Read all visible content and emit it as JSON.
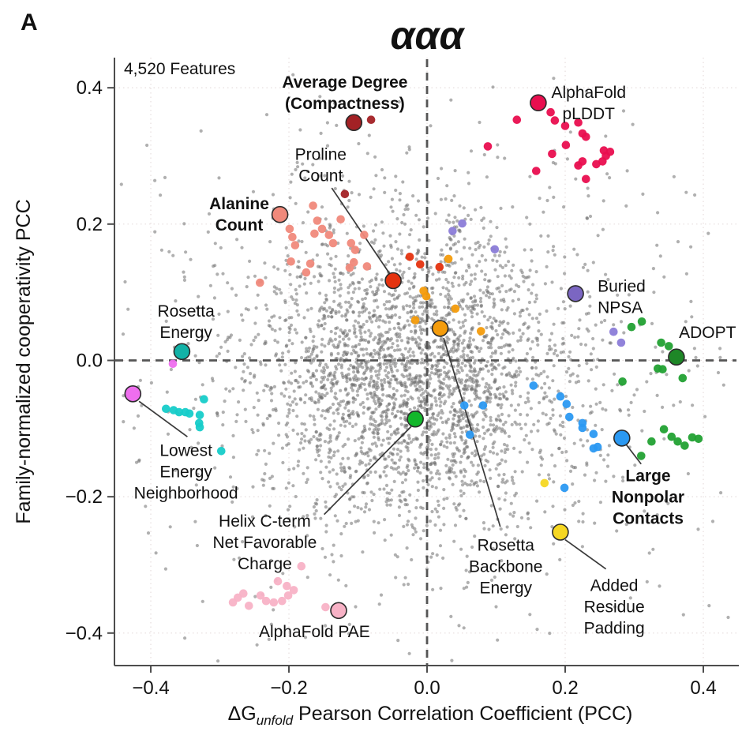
{
  "chart_data": {
    "type": "scatter",
    "panel_label": "A",
    "title": "ααα",
    "features_note": "4,520 Features",
    "ylabel": "Family-normalized cooperativity PCC",
    "xlabel_parts": {
      "prefix": "ΔG",
      "sub": "unfold",
      "suffix": " Pearson Correlation Coefficient (PCC)"
    },
    "xlim": [
      -0.4526,
      0.448
    ],
    "ylim": [
      -0.4477,
      0.4442
    ],
    "xticks": [
      -0.4,
      -0.2,
      0.0,
      0.2,
      0.4
    ],
    "yticks": [
      -0.4,
      -0.2,
      0.0,
      0.2,
      0.4
    ],
    "xtick_labels": [
      "−0.4",
      "−0.2",
      "0.0",
      "0.2",
      "0.4"
    ],
    "ytick_labels": [
      "−0.4",
      "−0.2",
      "0.0",
      "0.2",
      "0.4"
    ],
    "grid": "dotted at 0.2 intervals",
    "zero_lines": "dashed at x=0 and y=0",
    "gray_cloud": {
      "count": 3400,
      "seed": 7,
      "center": [
        -0.02,
        -0.018
      ],
      "sigma_core": [
        0.108,
        0.1
      ],
      "sigma_halo": [
        0.205,
        0.185
      ],
      "core_weight": 0.63,
      "color": "#6f6f6f",
      "radius": 2.1,
      "opacity": 0.55
    },
    "highlight_groups": [
      {
        "name": "average-degree",
        "color": "#A32125",
        "small_color": "#A32125",
        "big": [
          -0.106,
          0.349
        ],
        "points": [
          [
            -0.081,
            0.353
          ],
          [
            -0.119,
            0.244
          ]
        ],
        "label": {
          "lines": [
            "Average Degree",
            "(Compactness)"
          ],
          "x": -0.119,
          "y": 0.4,
          "bold": true,
          "align": "middle"
        }
      },
      {
        "name": "alphafold-plddt",
        "color": "#E90E4F",
        "small_color": "#E90E4F",
        "big": [
          0.161,
          0.378
        ],
        "points": [
          [
            0.179,
            0.364
          ],
          [
            0.185,
            0.352
          ],
          [
            0.2,
            0.344
          ],
          [
            0.219,
            0.349
          ],
          [
            0.225,
            0.333
          ],
          [
            0.23,
            0.328
          ],
          [
            0.201,
            0.316
          ],
          [
            0.181,
            0.303
          ],
          [
            0.088,
            0.314
          ],
          [
            0.13,
            0.353
          ],
          [
            0.158,
            0.278
          ],
          [
            0.256,
            0.308
          ],
          [
            0.259,
            0.3
          ],
          [
            0.265,
            0.306
          ],
          [
            0.225,
            0.292
          ],
          [
            0.219,
            0.286
          ],
          [
            0.245,
            0.288
          ],
          [
            0.254,
            0.292
          ],
          [
            0.23,
            0.266
          ]
        ],
        "label": {
          "lines": [
            "AlphaFold",
            "pLDDT"
          ],
          "x": 0.234,
          "y": 0.385,
          "bold": false,
          "align": "middle"
        }
      },
      {
        "name": "proline-count",
        "color": "#E5330F",
        "small_color": "#E5330F",
        "big": [
          -0.049,
          0.117
        ],
        "points": [
          [
            -0.025,
            0.152
          ],
          [
            -0.01,
            0.141
          ],
          [
            0.018,
            0.137
          ]
        ],
        "label": {
          "lines": [
            "Proline",
            "Count"
          ],
          "x": -0.154,
          "y": 0.294,
          "bold": false,
          "align": "middle"
        },
        "leader": [
          -0.138,
          0.253,
          -0.054,
          0.127
        ]
      },
      {
        "name": "alanine-count",
        "color": "#F0897B",
        "small_color": "#F0897B",
        "big": [
          -0.213,
          0.214
        ],
        "points": [
          [
            -0.165,
            0.227
          ],
          [
            -0.159,
            0.205
          ],
          [
            -0.152,
            0.193
          ],
          [
            -0.163,
            0.186
          ],
          [
            -0.142,
            0.184
          ],
          [
            -0.136,
            0.172
          ],
          [
            -0.11,
            0.172
          ],
          [
            -0.104,
            0.162
          ],
          [
            -0.091,
            0.184
          ],
          [
            -0.087,
            0.138
          ],
          [
            -0.199,
            0.193
          ],
          [
            -0.195,
            0.181
          ],
          [
            -0.191,
            0.169
          ],
          [
            -0.169,
            0.142
          ],
          [
            -0.175,
            0.129
          ],
          [
            -0.197,
            0.145
          ],
          [
            -0.112,
            0.136
          ],
          [
            -0.242,
            0.114
          ],
          [
            -0.125,
            0.207
          ],
          [
            -0.106,
            0.144
          ]
        ],
        "label": {
          "lines": [
            "Alanine",
            "Count"
          ],
          "x": -0.272,
          "y": 0.222,
          "bold": true,
          "align": "middle"
        }
      },
      {
        "name": "rosetta-energy",
        "color": "#12B2A7",
        "small_color": "#16CCC9",
        "big": [
          -0.355,
          0.013
        ],
        "points": [
          [
            -0.378,
            -0.071
          ],
          [
            -0.367,
            -0.073
          ],
          [
            -0.359,
            -0.076
          ],
          [
            -0.35,
            -0.076
          ],
          [
            -0.344,
            -0.078
          ],
          [
            -0.329,
            -0.08
          ],
          [
            -0.33,
            -0.092
          ],
          [
            -0.329,
            -0.098
          ],
          [
            -0.298,
            -0.133
          ],
          [
            -0.323,
            -0.057
          ]
        ],
        "label": {
          "lines": [
            "Rosetta",
            "Energy"
          ],
          "x": -0.349,
          "y": 0.064,
          "bold": false,
          "align": "middle"
        }
      },
      {
        "name": "lowest-energy-neighborhood",
        "color": "#EE6EEE",
        "small_color": "#EE6EEE",
        "big": [
          -0.426,
          -0.049
        ],
        "points": [
          [
            -0.368,
            -0.005
          ]
        ],
        "label": {
          "lines": [
            "Lowest",
            "Energy",
            "Neighborhood"
          ],
          "x": -0.349,
          "y": -0.14,
          "bold": false,
          "align": "middle"
        },
        "leader": [
          -0.417,
          -0.06,
          -0.347,
          -0.112
        ]
      },
      {
        "name": "buried-npsa",
        "color": "#7B66C2",
        "small_color": "#8B7CD8",
        "big": [
          0.215,
          0.098
        ],
        "points": [
          [
            0.27,
            0.042
          ],
          [
            0.281,
            0.026
          ],
          [
            0.051,
            0.201
          ],
          [
            0.037,
            0.19
          ],
          [
            0.098,
            0.163
          ]
        ],
        "label": {
          "lines": [
            "Buried",
            "NPSA"
          ],
          "x": 0.247,
          "y": 0.101,
          "bold": false,
          "align": "start"
        }
      },
      {
        "name": "adopt",
        "color": "#1E8727",
        "small_color": "#22A133",
        "big": [
          0.361,
          0.005
        ],
        "points": [
          [
            0.339,
            0.026
          ],
          [
            0.35,
            0.021
          ],
          [
            0.334,
            -0.012
          ],
          [
            0.341,
            -0.013
          ],
          [
            0.37,
            -0.026
          ],
          [
            0.296,
            0.049
          ],
          [
            0.311,
            0.057
          ],
          [
            0.283,
            -0.031
          ],
          [
            0.343,
            -0.101
          ],
          [
            0.354,
            -0.112
          ],
          [
            0.363,
            -0.119
          ],
          [
            0.384,
            -0.113
          ],
          [
            0.393,
            -0.115
          ],
          [
            0.373,
            -0.125
          ],
          [
            0.31,
            -0.14
          ],
          [
            0.325,
            -0.119
          ]
        ],
        "label": {
          "lines": [
            "ADOPT"
          ],
          "x": 0.406,
          "y": 0.033,
          "bold": false,
          "align": "middle"
        }
      },
      {
        "name": "large-nonpolar-contacts",
        "color": "#2B99F2",
        "small_color": "#2B99F2",
        "big": [
          0.282,
          -0.114
        ],
        "points": [
          [
            0.154,
            -0.037
          ],
          [
            0.193,
            -0.053
          ],
          [
            0.202,
            -0.064
          ],
          [
            0.206,
            -0.083
          ],
          [
            0.225,
            -0.092
          ],
          [
            0.225,
            -0.099
          ],
          [
            0.241,
            -0.108
          ],
          [
            0.241,
            -0.129
          ],
          [
            0.247,
            -0.127
          ],
          [
            0.199,
            -0.187
          ],
          [
            0.054,
            -0.066
          ],
          [
            0.081,
            -0.066
          ],
          [
            0.062,
            -0.109
          ]
        ],
        "label": {
          "lines": [
            "Large",
            "Nonpolar",
            "Contacts"
          ],
          "x": 0.32,
          "y": -0.177,
          "bold": true,
          "align": "middle"
        },
        "leader": [
          0.288,
          -0.123,
          0.31,
          -0.152
        ]
      },
      {
        "name": "helix-cterm-charge",
        "color": "#13B72B",
        "small_color": "#13B72B",
        "big": [
          -0.017,
          -0.086
        ],
        "points": [],
        "label": {
          "lines": [
            "Helix C-term",
            "Net Favorable",
            "Charge"
          ],
          "x": -0.235,
          "y": -0.244,
          "bold": false,
          "align": "middle"
        },
        "leader": [
          -0.023,
          -0.097,
          -0.149,
          -0.226
        ]
      },
      {
        "name": "rosetta-backbone-energy",
        "color": "#F49C0C",
        "small_color": "#F49C0C",
        "big": [
          0.019,
          0.047
        ],
        "points": [
          [
            0.031,
            0.149
          ],
          [
            -0.005,
            0.102
          ],
          [
            -0.001,
            0.094
          ],
          [
            -0.017,
            0.059
          ],
          [
            0.041,
            0.076
          ],
          [
            0.078,
            0.043
          ]
        ],
        "label": {
          "lines": [
            "Rosetta",
            "Backbone",
            "Energy"
          ],
          "x": 0.114,
          "y": -0.279,
          "bold": false,
          "align": "middle"
        },
        "leader": [
          0.024,
          0.033,
          0.106,
          -0.244
        ]
      },
      {
        "name": "added-residue-padding",
        "color": "#F6D722",
        "small_color": "#F6D722",
        "big": [
          0.193,
          -0.252
        ],
        "points": [
          [
            0.17,
            -0.18
          ]
        ],
        "label": {
          "lines": [
            "Added",
            "Residue",
            "Padding"
          ],
          "x": 0.271,
          "y": -0.338,
          "bold": false,
          "align": "middle"
        },
        "leader": [
          0.2,
          -0.263,
          0.259,
          -0.306
        ]
      },
      {
        "name": "alphafold-pae",
        "color": "#F8B2C6",
        "small_color": "#F8B2C6",
        "big": [
          -0.128,
          -0.367
        ],
        "points": [
          [
            -0.182,
            -0.302
          ],
          [
            -0.216,
            -0.324
          ],
          [
            -0.203,
            -0.331
          ],
          [
            -0.201,
            -0.345
          ],
          [
            -0.266,
            -0.342
          ],
          [
            -0.281,
            -0.355
          ],
          [
            -0.233,
            -0.353
          ],
          [
            -0.222,
            -0.355
          ],
          [
            -0.21,
            -0.353
          ],
          [
            -0.258,
            -0.36
          ],
          [
            -0.147,
            -0.362
          ],
          [
            -0.274,
            -0.348
          ],
          [
            -0.241,
            -0.345
          ],
          [
            -0.193,
            -0.337
          ]
        ],
        "label": {
          "lines": [
            "AlphaFold PAE"
          ],
          "x": -0.163,
          "y": -0.406,
          "bold": false,
          "align": "middle"
        }
      }
    ],
    "style": {
      "spine_color": "#4d4d4d",
      "grid_color": "#e6dddd",
      "zero_line_color": "#555555",
      "leader_color": "#3a3a3a",
      "big_point_radius": 10,
      "small_point_radius": 5.3,
      "big_point_stroke": "#2b2b2b"
    }
  }
}
